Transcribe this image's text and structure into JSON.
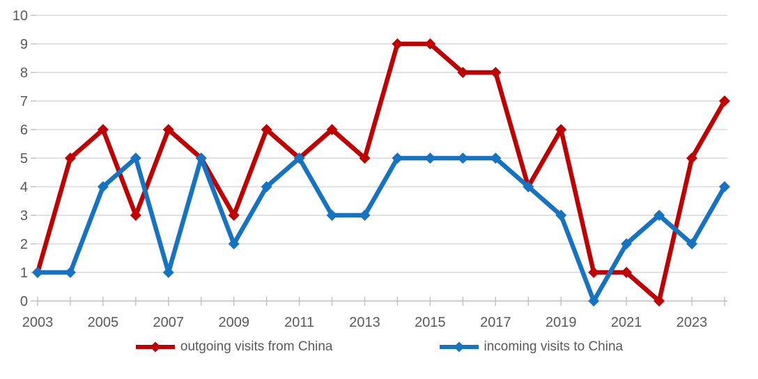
{
  "chart_data": {
    "type": "line",
    "title": "",
    "xlabel": "",
    "ylabel": "",
    "x": [
      2003,
      2004,
      2005,
      2006,
      2007,
      2008,
      2009,
      2010,
      2011,
      2012,
      2013,
      2014,
      2015,
      2016,
      2017,
      2018,
      2019,
      2020,
      2021,
      2022,
      2023,
      2024
    ],
    "x_tick_labels": [
      "2003",
      "2005",
      "2007",
      "2009",
      "2011",
      "2013",
      "2015",
      "2017",
      "2019",
      "2021",
      "2023"
    ],
    "y_ticks": [
      0,
      1,
      2,
      3,
      4,
      5,
      6,
      7,
      8,
      9,
      10
    ],
    "ylim": [
      0,
      10
    ],
    "grid": "horizontal",
    "legend_position": "bottom",
    "series": [
      {
        "name": "outgoing visits from China",
        "color": "#C00000",
        "marker": "diamond",
        "values": [
          1,
          5,
          6,
          3,
          6,
          5,
          3,
          6,
          5,
          6,
          5,
          9,
          9,
          8,
          8,
          4,
          6,
          1,
          1,
          0,
          5,
          7
        ]
      },
      {
        "name": "incoming visits to China",
        "color": "#1673C2",
        "marker": "diamond",
        "values": [
          1,
          1,
          4,
          5,
          1,
          5,
          2,
          4,
          5,
          3,
          3,
          5,
          5,
          5,
          5,
          4,
          3,
          0,
          2,
          3,
          2,
          4
        ]
      }
    ],
    "colors": {
      "axis_text": "#595959",
      "gridline": "#D9D9D9",
      "axis_line": "#BFBFBF"
    }
  }
}
